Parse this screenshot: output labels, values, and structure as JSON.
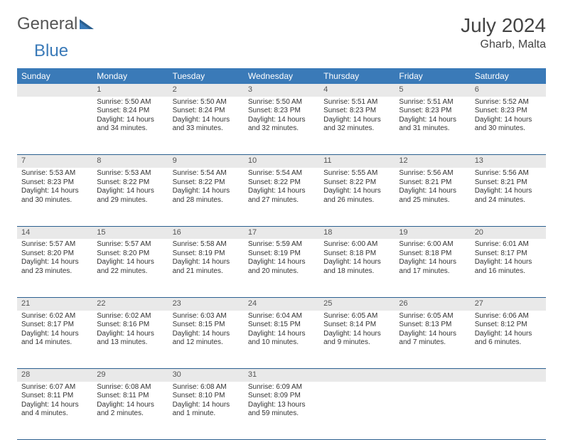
{
  "logo": {
    "word1": "General",
    "word2": "Blue"
  },
  "title": "July 2024",
  "location": "Gharb, Malta",
  "colors": {
    "header_bg": "#3a7ab8",
    "header_text": "#ffffff",
    "daynum_bg": "#e9e9e9",
    "daynum_text": "#555555",
    "rule": "#2b5f8f",
    "body_text": "#333333",
    "logo_gray": "#555555",
    "logo_blue": "#3a7ab8"
  },
  "weekday_labels": [
    "Sunday",
    "Monday",
    "Tuesday",
    "Wednesday",
    "Thursday",
    "Friday",
    "Saturday"
  ],
  "weeks": [
    {
      "nums": [
        "",
        "1",
        "2",
        "3",
        "4",
        "5",
        "6"
      ],
      "cells": [
        null,
        {
          "sunrise": "Sunrise: 5:50 AM",
          "sunset": "Sunset: 8:24 PM",
          "day1": "Daylight: 14 hours",
          "day2": "and 34 minutes."
        },
        {
          "sunrise": "Sunrise: 5:50 AM",
          "sunset": "Sunset: 8:24 PM",
          "day1": "Daylight: 14 hours",
          "day2": "and 33 minutes."
        },
        {
          "sunrise": "Sunrise: 5:50 AM",
          "sunset": "Sunset: 8:23 PM",
          "day1": "Daylight: 14 hours",
          "day2": "and 32 minutes."
        },
        {
          "sunrise": "Sunrise: 5:51 AM",
          "sunset": "Sunset: 8:23 PM",
          "day1": "Daylight: 14 hours",
          "day2": "and 32 minutes."
        },
        {
          "sunrise": "Sunrise: 5:51 AM",
          "sunset": "Sunset: 8:23 PM",
          "day1": "Daylight: 14 hours",
          "day2": "and 31 minutes."
        },
        {
          "sunrise": "Sunrise: 5:52 AM",
          "sunset": "Sunset: 8:23 PM",
          "day1": "Daylight: 14 hours",
          "day2": "and 30 minutes."
        }
      ]
    },
    {
      "nums": [
        "7",
        "8",
        "9",
        "10",
        "11",
        "12",
        "13"
      ],
      "cells": [
        {
          "sunrise": "Sunrise: 5:53 AM",
          "sunset": "Sunset: 8:23 PM",
          "day1": "Daylight: 14 hours",
          "day2": "and 30 minutes."
        },
        {
          "sunrise": "Sunrise: 5:53 AM",
          "sunset": "Sunset: 8:22 PM",
          "day1": "Daylight: 14 hours",
          "day2": "and 29 minutes."
        },
        {
          "sunrise": "Sunrise: 5:54 AM",
          "sunset": "Sunset: 8:22 PM",
          "day1": "Daylight: 14 hours",
          "day2": "and 28 minutes."
        },
        {
          "sunrise": "Sunrise: 5:54 AM",
          "sunset": "Sunset: 8:22 PM",
          "day1": "Daylight: 14 hours",
          "day2": "and 27 minutes."
        },
        {
          "sunrise": "Sunrise: 5:55 AM",
          "sunset": "Sunset: 8:22 PM",
          "day1": "Daylight: 14 hours",
          "day2": "and 26 minutes."
        },
        {
          "sunrise": "Sunrise: 5:56 AM",
          "sunset": "Sunset: 8:21 PM",
          "day1": "Daylight: 14 hours",
          "day2": "and 25 minutes."
        },
        {
          "sunrise": "Sunrise: 5:56 AM",
          "sunset": "Sunset: 8:21 PM",
          "day1": "Daylight: 14 hours",
          "day2": "and 24 minutes."
        }
      ]
    },
    {
      "nums": [
        "14",
        "15",
        "16",
        "17",
        "18",
        "19",
        "20"
      ],
      "cells": [
        {
          "sunrise": "Sunrise: 5:57 AM",
          "sunset": "Sunset: 8:20 PM",
          "day1": "Daylight: 14 hours",
          "day2": "and 23 minutes."
        },
        {
          "sunrise": "Sunrise: 5:57 AM",
          "sunset": "Sunset: 8:20 PM",
          "day1": "Daylight: 14 hours",
          "day2": "and 22 minutes."
        },
        {
          "sunrise": "Sunrise: 5:58 AM",
          "sunset": "Sunset: 8:19 PM",
          "day1": "Daylight: 14 hours",
          "day2": "and 21 minutes."
        },
        {
          "sunrise": "Sunrise: 5:59 AM",
          "sunset": "Sunset: 8:19 PM",
          "day1": "Daylight: 14 hours",
          "day2": "and 20 minutes."
        },
        {
          "sunrise": "Sunrise: 6:00 AM",
          "sunset": "Sunset: 8:18 PM",
          "day1": "Daylight: 14 hours",
          "day2": "and 18 minutes."
        },
        {
          "sunrise": "Sunrise: 6:00 AM",
          "sunset": "Sunset: 8:18 PM",
          "day1": "Daylight: 14 hours",
          "day2": "and 17 minutes."
        },
        {
          "sunrise": "Sunrise: 6:01 AM",
          "sunset": "Sunset: 8:17 PM",
          "day1": "Daylight: 14 hours",
          "day2": "and 16 minutes."
        }
      ]
    },
    {
      "nums": [
        "21",
        "22",
        "23",
        "24",
        "25",
        "26",
        "27"
      ],
      "cells": [
        {
          "sunrise": "Sunrise: 6:02 AM",
          "sunset": "Sunset: 8:17 PM",
          "day1": "Daylight: 14 hours",
          "day2": "and 14 minutes."
        },
        {
          "sunrise": "Sunrise: 6:02 AM",
          "sunset": "Sunset: 8:16 PM",
          "day1": "Daylight: 14 hours",
          "day2": "and 13 minutes."
        },
        {
          "sunrise": "Sunrise: 6:03 AM",
          "sunset": "Sunset: 8:15 PM",
          "day1": "Daylight: 14 hours",
          "day2": "and 12 minutes."
        },
        {
          "sunrise": "Sunrise: 6:04 AM",
          "sunset": "Sunset: 8:15 PM",
          "day1": "Daylight: 14 hours",
          "day2": "and 10 minutes."
        },
        {
          "sunrise": "Sunrise: 6:05 AM",
          "sunset": "Sunset: 8:14 PM",
          "day1": "Daylight: 14 hours",
          "day2": "and 9 minutes."
        },
        {
          "sunrise": "Sunrise: 6:05 AM",
          "sunset": "Sunset: 8:13 PM",
          "day1": "Daylight: 14 hours",
          "day2": "and 7 minutes."
        },
        {
          "sunrise": "Sunrise: 6:06 AM",
          "sunset": "Sunset: 8:12 PM",
          "day1": "Daylight: 14 hours",
          "day2": "and 6 minutes."
        }
      ]
    },
    {
      "nums": [
        "28",
        "29",
        "30",
        "31",
        "",
        "",
        ""
      ],
      "cells": [
        {
          "sunrise": "Sunrise: 6:07 AM",
          "sunset": "Sunset: 8:11 PM",
          "day1": "Daylight: 14 hours",
          "day2": "and 4 minutes."
        },
        {
          "sunrise": "Sunrise: 6:08 AM",
          "sunset": "Sunset: 8:11 PM",
          "day1": "Daylight: 14 hours",
          "day2": "and 2 minutes."
        },
        {
          "sunrise": "Sunrise: 6:08 AM",
          "sunset": "Sunset: 8:10 PM",
          "day1": "Daylight: 14 hours",
          "day2": "and 1 minute."
        },
        {
          "sunrise": "Sunrise: 6:09 AM",
          "sunset": "Sunset: 8:09 PM",
          "day1": "Daylight: 13 hours",
          "day2": "and 59 minutes."
        },
        null,
        null,
        null
      ]
    }
  ]
}
